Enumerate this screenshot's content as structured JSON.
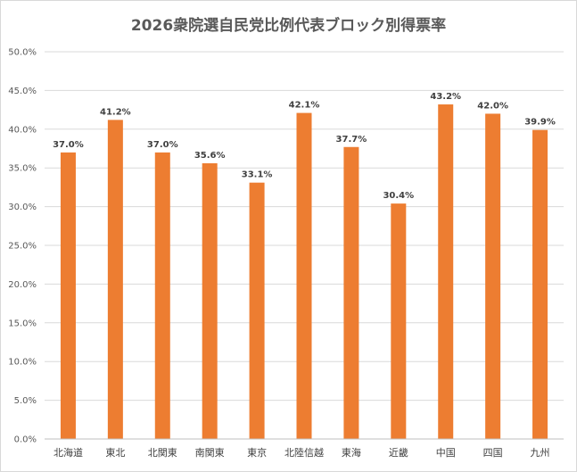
{
  "chart_data": {
    "type": "bar",
    "title": "2026衆院選自民党比例代表ブロック別得票率",
    "categories": [
      "北海道",
      "東北",
      "北関東",
      "南関東",
      "東京",
      "北陸信越",
      "東海",
      "近畿",
      "中国",
      "四国",
      "九州"
    ],
    "values": [
      37.0,
      41.2,
      37.0,
      35.6,
      33.1,
      42.1,
      37.7,
      30.4,
      43.2,
      42.0,
      39.9
    ],
    "data_labels": [
      "37.0%",
      "41.2%",
      "37.0%",
      "35.6%",
      "33.1%",
      "42.1%",
      "37.7%",
      "30.4%",
      "43.2%",
      "42.0%",
      "39.9%"
    ],
    "y_ticks": [
      "0.0%",
      "5.0%",
      "10.0%",
      "15.0%",
      "20.0%",
      "25.0%",
      "30.0%",
      "35.0%",
      "40.0%",
      "45.0%",
      "50.0%"
    ],
    "ylim": [
      0,
      50
    ],
    "xlabel": "",
    "ylabel": "",
    "grid": true,
    "bar_color": "#ed7d31",
    "legend": "none"
  }
}
